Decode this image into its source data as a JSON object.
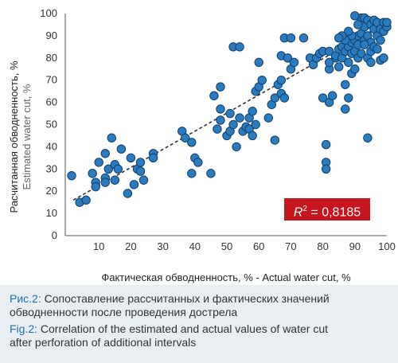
{
  "colors": {
    "point": "#2b7bbf",
    "point_stroke": "#0f3f6b",
    "trend": "#333333",
    "r2_box": "#c4161c",
    "caption_bg": "#e9eef2",
    "caption_label": "#1f6fae"
  },
  "r2": {
    "symbol": "R",
    "sup": "2",
    "text": " = 0,8185"
  },
  "caption": {
    "fig_ru_label": "Рис.2:",
    "fig_ru_line1": " Сопоставление рассчитанных и фактических значений",
    "fig_ru_line2": "обводненности после проведения дострела",
    "fig_en_label": "Fig.2:",
    "fig_en_line1": " Correlation of the estimated and actual values of water cut",
    "fig_en_line2": "after perforation of additional intervals"
  },
  "chart_data": {
    "type": "scatter",
    "xlabel": "Фактическая обводненность, % - Actual water cut, %",
    "ylabel": "Расчитанная обводненность, %",
    "ylabel2": "Estimated water cut, %",
    "xlim": [
      0,
      100
    ],
    "ylim": [
      0,
      100
    ],
    "xticks": [
      10,
      20,
      30,
      40,
      50,
      60,
      70,
      80,
      90,
      100
    ],
    "yticks": [
      0,
      10,
      20,
      30,
      40,
      50,
      60,
      70,
      80,
      90,
      100
    ],
    "grid": false,
    "trendline": {
      "type": "linear",
      "x": [
        2,
        100
      ],
      "y": [
        16,
        96
      ],
      "style": "dashed"
    },
    "points": [
      [
        1.5,
        27
      ],
      [
        4,
        15
      ],
      [
        6,
        16
      ],
      [
        8,
        28
      ],
      [
        9,
        24
      ],
      [
        9,
        22
      ],
      [
        10,
        33
      ],
      [
        12,
        26
      ],
      [
        12,
        24
      ],
      [
        13,
        30
      ],
      [
        12,
        37
      ],
      [
        14,
        44
      ],
      [
        15,
        32
      ],
      [
        15,
        25
      ],
      [
        17,
        39
      ],
      [
        16,
        30
      ],
      [
        19,
        19
      ],
      [
        20,
        35
      ],
      [
        21,
        23
      ],
      [
        22,
        30
      ],
      [
        23,
        29
      ],
      [
        23,
        33
      ],
      [
        24,
        25
      ],
      [
        27,
        37
      ],
      [
        27,
        35
      ],
      [
        36,
        47
      ],
      [
        37,
        44
      ],
      [
        39,
        42
      ],
      [
        39,
        28
      ],
      [
        40,
        35
      ],
      [
        41,
        33
      ],
      [
        45,
        28
      ],
      [
        46,
        63
      ],
      [
        47,
        48
      ],
      [
        48,
        67
      ],
      [
        48,
        57
      ],
      [
        48,
        52
      ],
      [
        50,
        45
      ],
      [
        51,
        47
      ],
      [
        51,
        55
      ],
      [
        52,
        85
      ],
      [
        52,
        50
      ],
      [
        53,
        40
      ],
      [
        54,
        85
      ],
      [
        54,
        53
      ],
      [
        55,
        47
      ],
      [
        56,
        49
      ],
      [
        57,
        48
      ],
      [
        57,
        53
      ],
      [
        58,
        45
      ],
      [
        58,
        56
      ],
      [
        59,
        65
      ],
      [
        59,
        50
      ],
      [
        60,
        67
      ],
      [
        60,
        78
      ],
      [
        61,
        70
      ],
      [
        63,
        53
      ],
      [
        64,
        59
      ],
      [
        65,
        43
      ],
      [
        65,
        62
      ],
      [
        66,
        68
      ],
      [
        67,
        70
      ],
      [
        67,
        81
      ],
      [
        67,
        64
      ],
      [
        68,
        89
      ],
      [
        68,
        62
      ],
      [
        69,
        80
      ],
      [
        70,
        89
      ],
      [
        70,
        75
      ],
      [
        71,
        78
      ],
      [
        74,
        89
      ],
      [
        76,
        80
      ],
      [
        77,
        77
      ],
      [
        78,
        80
      ],
      [
        79,
        82
      ],
      [
        80,
        62
      ],
      [
        80,
        83
      ],
      [
        81,
        41
      ],
      [
        81,
        33
      ],
      [
        81,
        30
      ],
      [
        82,
        75
      ],
      [
        82,
        78
      ],
      [
        82,
        83
      ],
      [
        82,
        60
      ],
      [
        83,
        63
      ],
      [
        84,
        80
      ],
      [
        84,
        81
      ],
      [
        85,
        84
      ],
      [
        85,
        76
      ],
      [
        86,
        80
      ],
      [
        86,
        85
      ],
      [
        87,
        57
      ],
      [
        87,
        68
      ],
      [
        87,
        83
      ],
      [
        88,
        62
      ],
      [
        88,
        78
      ],
      [
        88,
        85
      ],
      [
        89,
        82
      ],
      [
        89,
        87
      ],
      [
        89,
        73
      ],
      [
        90,
        75
      ],
      [
        90,
        83
      ],
      [
        90,
        88
      ],
      [
        91,
        80
      ],
      [
        91,
        86
      ],
      [
        91,
        90
      ],
      [
        92,
        98
      ],
      [
        92,
        82
      ],
      [
        92,
        91
      ],
      [
        93,
        88
      ],
      [
        93,
        94
      ],
      [
        93,
        98
      ],
      [
        94,
        97
      ],
      [
        94,
        90
      ],
      [
        94,
        44
      ],
      [
        94,
        80
      ],
      [
        95,
        95
      ],
      [
        95,
        87
      ],
      [
        95,
        83
      ],
      [
        96,
        93
      ],
      [
        96,
        97
      ],
      [
        96,
        85
      ],
      [
        97,
        90
      ],
      [
        97,
        96
      ],
      [
        97,
        84
      ],
      [
        98,
        88
      ],
      [
        98,
        93
      ],
      [
        98,
        79
      ],
      [
        99,
        96
      ],
      [
        99,
        92
      ],
      [
        99,
        80
      ],
      [
        100,
        94
      ],
      [
        100,
        96
      ],
      [
        95,
        78
      ],
      [
        90,
        99
      ],
      [
        91,
        95
      ],
      [
        93,
        86
      ],
      [
        89,
        90
      ],
      [
        88,
        92
      ],
      [
        87,
        88
      ],
      [
        86,
        90
      ],
      [
        85,
        89
      ]
    ]
  }
}
